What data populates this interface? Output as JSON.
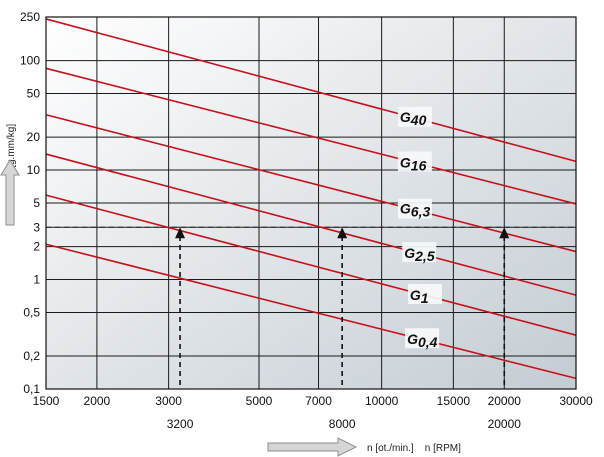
{
  "chart_data": {
    "type": "line",
    "scale": {
      "x": "log",
      "y": "log"
    },
    "xlim": [
      1500,
      30000
    ],
    "ylim": [
      0.1,
      250
    ],
    "xlabel": "n [ot./min.]    n [RPM]",
    "ylabel": "e [g.mm/kg]",
    "x_ticks": [
      1500,
      2000,
      3000,
      5000,
      7000,
      10000,
      15000,
      20000,
      30000
    ],
    "x_tick_labels": [
      "1500",
      "2000",
      "3000",
      "5000",
      "7000",
      "10000",
      "15000",
      "20000",
      "30000"
    ],
    "y_ticks": [
      0.1,
      0.2,
      0.5,
      1,
      2,
      3,
      5,
      10,
      20,
      50,
      100,
      250
    ],
    "y_tick_labels": [
      "0,1",
      "0,2",
      "0,5",
      "1",
      "2",
      "3",
      "5",
      "10",
      "20",
      "50",
      "100",
      "250"
    ],
    "grid": true,
    "series": [
      {
        "name": "G40",
        "x": [
          1500,
          30000
        ],
        "y": [
          240,
          12
        ]
      },
      {
        "name": "G16",
        "x": [
          1500,
          30000
        ],
        "y": [
          85,
          4.9
        ]
      },
      {
        "name": "G6,3",
        "x": [
          1500,
          30000
        ],
        "y": [
          32,
          1.8
        ]
      },
      {
        "name": "G2,5",
        "x": [
          1500,
          30000
        ],
        "y": [
          14,
          0.72
        ]
      },
      {
        "name": "G1",
        "x": [
          1500,
          30000
        ],
        "y": [
          5.9,
          0.31
        ]
      },
      {
        "name": "G0,4",
        "x": [
          1500,
          30000
        ],
        "y": [
          2.1,
          0.125
        ]
      }
    ],
    "reference_y": 3,
    "markers": [
      {
        "x": 3200,
        "label": "3200"
      },
      {
        "x": 8000,
        "label": "8000"
      },
      {
        "x": 20000,
        "label": "20000"
      }
    ],
    "colors": {
      "line": "#c8101c",
      "grid": "#1a1a1a",
      "arrow": "#a9a9a9",
      "bg_light": "#ffffff",
      "bg_dark": "#c4ccd3"
    }
  }
}
